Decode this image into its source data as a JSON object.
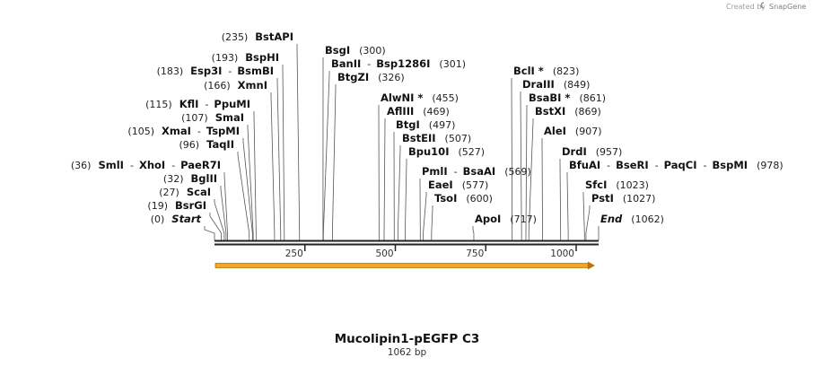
{
  "credit": {
    "prefix": "Created by",
    "brand": "SnapGene"
  },
  "map": {
    "title": "Mucolipin1-pEGFP C3",
    "length_label": "1062 bp",
    "total_bp": 1062,
    "ticks": [
      "250",
      "500",
      "750",
      "1000"
    ],
    "tick_values": [
      250,
      500,
      750,
      1000
    ],
    "feature_color": "#f5a623"
  },
  "sites": [
    {
      "pos": 0,
      "text": "(0)",
      "names": [
        "Start"
      ],
      "italic": true
    },
    {
      "pos": 19,
      "text": "(19)",
      "names": [
        "BsrGI"
      ]
    },
    {
      "pos": 27,
      "text": "(27)",
      "names": [
        "ScaI"
      ]
    },
    {
      "pos": 32,
      "text": "(32)",
      "names": [
        "BglII"
      ]
    },
    {
      "pos": 36,
      "text": "(36)",
      "names": [
        "SmlI",
        "XhoI",
        "PaeR7I"
      ]
    },
    {
      "pos": 96,
      "text": "(96)",
      "names": [
        "TaqII"
      ]
    },
    {
      "pos": 105,
      "text": "(105)",
      "names": [
        "XmaI",
        "TspMI"
      ]
    },
    {
      "pos": 107,
      "text": "(107)",
      "names": [
        "SmaI"
      ]
    },
    {
      "pos": 115,
      "text": "(115)",
      "names": [
        "KflI",
        "PpuMI"
      ]
    },
    {
      "pos": 166,
      "text": "(166)",
      "names": [
        "XmnI"
      ]
    },
    {
      "pos": 183,
      "text": "(183)",
      "names": [
        "Esp3I",
        "BsmBI"
      ]
    },
    {
      "pos": 193,
      "text": "(193)",
      "names": [
        "BspHI"
      ]
    },
    {
      "pos": 235,
      "text": "(235)",
      "names": [
        "BstAPI"
      ]
    },
    {
      "pos": 300,
      "text": "(300)",
      "names": [
        "BsgI"
      ]
    },
    {
      "pos": 301,
      "text": "(301)",
      "names": [
        "BanII",
        "Bsp1286I"
      ]
    },
    {
      "pos": 326,
      "text": "(326)",
      "names": [
        "BtgZI"
      ]
    },
    {
      "pos": 455,
      "text": "(455)",
      "names": [
        "AlwNI *"
      ]
    },
    {
      "pos": 469,
      "text": "(469)",
      "names": [
        "AflIII"
      ]
    },
    {
      "pos": 497,
      "text": "(497)",
      "names": [
        "BtgI"
      ]
    },
    {
      "pos": 507,
      "text": "(507)",
      "names": [
        "BstEII"
      ]
    },
    {
      "pos": 527,
      "text": "(527)",
      "names": [
        "Bpu10I"
      ]
    },
    {
      "pos": 569,
      "text": "(569)",
      "names": [
        "PmlI",
        "BsaAI"
      ]
    },
    {
      "pos": 577,
      "text": "(577)",
      "names": [
        "EaeI"
      ]
    },
    {
      "pos": 600,
      "text": "(600)",
      "names": [
        "TsoI"
      ]
    },
    {
      "pos": 717,
      "text": "(717)",
      "names": [
        "ApoI"
      ]
    },
    {
      "pos": 823,
      "text": "(823)",
      "names": [
        "BclI *"
      ]
    },
    {
      "pos": 849,
      "text": "(849)",
      "names": [
        "DraIII"
      ]
    },
    {
      "pos": 861,
      "text": "(861)",
      "names": [
        "BsaBI *"
      ]
    },
    {
      "pos": 869,
      "text": "(869)",
      "names": [
        "BstXI"
      ]
    },
    {
      "pos": 907,
      "text": "(907)",
      "names": [
        "AleI"
      ]
    },
    {
      "pos": 957,
      "text": "(957)",
      "names": [
        "DrdI"
      ]
    },
    {
      "pos": 978,
      "text": "(978)",
      "names": [
        "BfuAI",
        "BseRI",
        "PaqCI",
        "BspMI"
      ]
    },
    {
      "pos": 1023,
      "text": "(1023)",
      "names": [
        "SfcI"
      ]
    },
    {
      "pos": 1027,
      "text": "(1027)",
      "names": [
        "PstI"
      ]
    },
    {
      "pos": 1062,
      "text": "(1062)",
      "names": [
        "End"
      ],
      "italic": true
    }
  ]
}
